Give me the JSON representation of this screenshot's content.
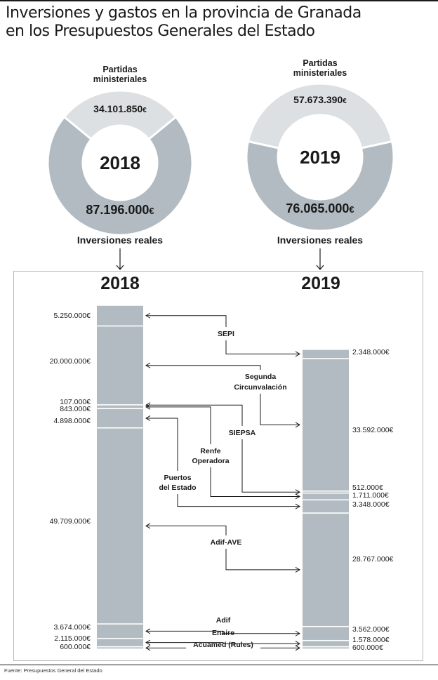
{
  "title": {
    "line1": "Inversiones y gastos en la provincia de Granada",
    "line2": "en los Presupuestos Generales del Estado"
  },
  "colors": {
    "ring_ministerial": "#dce0e3",
    "ring_inversiones": "#b2bbc1",
    "bar": "#b2bbc1",
    "line": "#1a1a1a",
    "frame": "#b8b8b8"
  },
  "source": "Fuente: Presupuestos General del Estado",
  "chart_data": [
    {
      "type": "pie",
      "year_label": "2018",
      "top_label": [
        "Partidas",
        "ministeriales"
      ],
      "bottom_label": "Inversiones reales",
      "slices": [
        {
          "name": "Partidas ministeriales",
          "value": 34101850,
          "label": "34.101.850",
          "unit": "€"
        },
        {
          "name": "Inversiones reales",
          "value": 87196000,
          "label": "87.196.000",
          "unit": "€"
        }
      ]
    },
    {
      "type": "pie",
      "year_label": "2019",
      "top_label": [
        "Partidas",
        "ministeriales"
      ],
      "bottom_label": "Inversiones reales",
      "slices": [
        {
          "name": "Partidas ministeriales",
          "value": 57673390,
          "label": "57.673.390",
          "unit": "€"
        },
        {
          "name": "Inversiones reales",
          "value": 76065000,
          "label": "76.065.000",
          "unit": "€"
        }
      ]
    },
    {
      "type": "bar",
      "layout": "stacked-comparison",
      "years": [
        "2018",
        "2019"
      ],
      "categories": [
        "SEPI",
        "Segunda Circunvalación",
        "SIEPSA",
        "Renfe Operadora",
        "Puertos del Estado",
        "Adif-AVE",
        "Adif",
        "Enaire",
        "Acuamed (Rules)"
      ],
      "category_lines": [
        [
          "SEPI"
        ],
        [
          "Segunda",
          "Circunvalación"
        ],
        [
          "SIEPSA"
        ],
        [
          "Renfe",
          "Operadora"
        ],
        [
          "Puertos",
          "del Estado"
        ],
        [
          "Adif-AVE"
        ],
        [
          "Adif"
        ],
        [
          "Enaire"
        ],
        [
          "Acuamed (Rules)"
        ]
      ],
      "series": [
        {
          "name": "2018",
          "values": [
            5250000,
            20000000,
            107000,
            843000,
            4898000,
            49709000,
            3674000,
            2115000,
            600000
          ],
          "labels": [
            "5.250.000€",
            "20.000.000€",
            "107.000€",
            "843.000€",
            "4.898.000€",
            "49.709.000€",
            "3.674.000€",
            "2.115.000€",
            "600.000€"
          ]
        },
        {
          "name": "2019",
          "values": [
            2348000,
            33592000,
            512000,
            1711000,
            3348000,
            28767000,
            3562000,
            1578000,
            600000
          ],
          "labels": [
            "2.348.000€",
            "33.592.000€",
            "512.000€",
            "1.711.000€",
            "3.348.000€",
            "28.767.000€",
            "3.562.000€",
            "1.578.000€",
            "600.000€"
          ]
        }
      ]
    }
  ]
}
